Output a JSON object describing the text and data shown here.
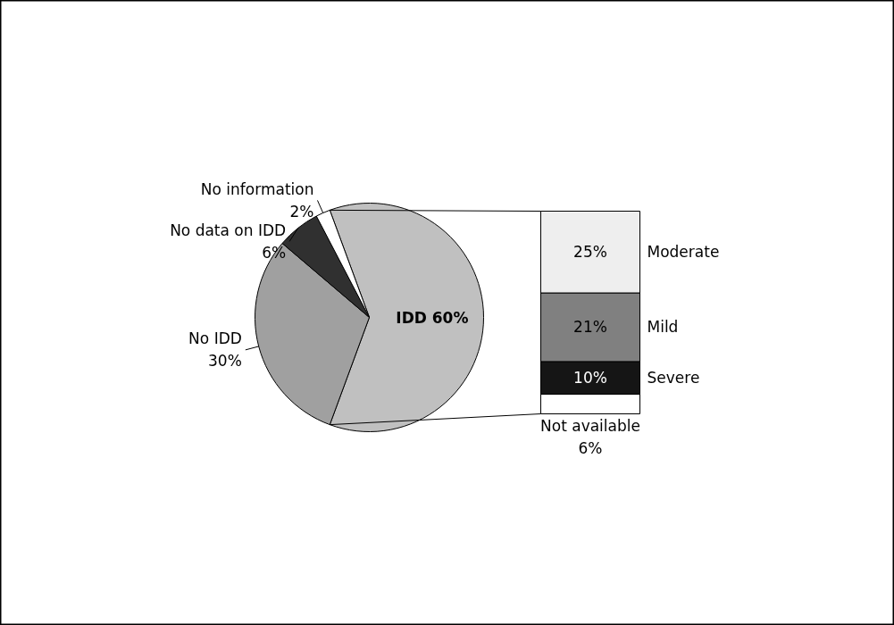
{
  "chart_data": [
    {
      "type": "pie",
      "categories": [
        "IDD",
        "No IDD",
        "No data on IDD",
        "No information"
      ],
      "values": [
        60,
        30,
        6,
        2
      ],
      "colors": [
        "#c0c0c0",
        "#a0a0a0",
        "#303030",
        "#ffffff"
      ],
      "value_labels": [
        "60%",
        "30%",
        "6%",
        "2%"
      ]
    },
    {
      "type": "bar",
      "stacked": true,
      "categories": [
        null
      ],
      "series": [
        {
          "name": "Not available",
          "color": "#ffffff",
          "values": [
            6
          ],
          "value_labels": [
            "6%"
          ]
        },
        {
          "name": "Severe",
          "color": "#151515",
          "values": [
            10
          ],
          "value_labels": [
            "10%"
          ]
        },
        {
          "name": "Mild",
          "color": "#808080",
          "values": [
            21
          ],
          "value_labels": [
            "21%"
          ]
        },
        {
          "name": "Moderate",
          "color": "#eeeeee",
          "values": [
            25
          ],
          "value_labels": [
            "25%"
          ]
        }
      ]
    }
  ]
}
